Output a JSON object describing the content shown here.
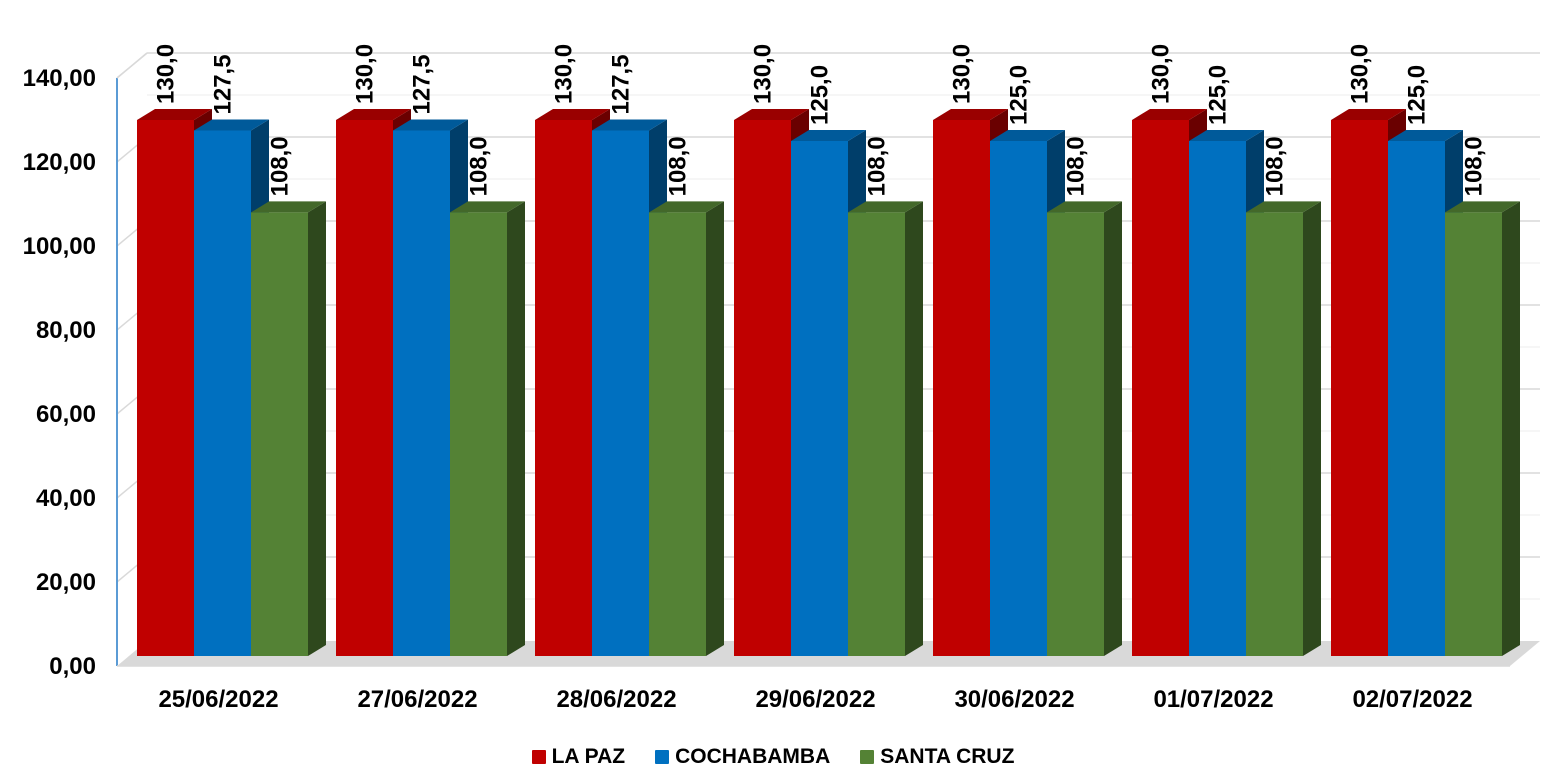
{
  "chart_data": {
    "type": "bar",
    "categories": [
      "25/06/2022",
      "27/06/2022",
      "28/06/2022",
      "29/06/2022",
      "30/06/2022",
      "01/07/2022",
      "02/07/2022"
    ],
    "series": [
      {
        "name": "LA PAZ",
        "color": "#c00000",
        "values": [
          130.0,
          130.0,
          130.0,
          130.0,
          130.0,
          130.0,
          130.0
        ],
        "labels": [
          "130,0",
          "130,0",
          "130,0",
          "130,0",
          "130,0",
          "130,0",
          "130,0"
        ]
      },
      {
        "name": "COCHABAMBA",
        "color": "#0070c0",
        "values": [
          127.5,
          127.5,
          127.5,
          125.0,
          125.0,
          125.0,
          125.0
        ],
        "labels": [
          "127,5",
          "127,5",
          "127,5",
          "125,0",
          "125,0",
          "125,0",
          "125,0"
        ]
      },
      {
        "name": "SANTA CRUZ",
        "color": "#548235",
        "values": [
          108.0,
          108.0,
          108.0,
          108.0,
          108.0,
          108.0,
          108.0
        ],
        "labels": [
          "108,0",
          "108,0",
          "108,0",
          "108,0",
          "108,0",
          "108,0",
          "108,0"
        ]
      }
    ],
    "y_ticks": [
      "0,00",
      "20,00",
      "40,00",
      "60,00",
      "80,00",
      "100,00",
      "120,00",
      "140,00"
    ],
    "ylim": [
      0,
      140
    ],
    "title": "",
    "xlabel": "",
    "ylabel": "",
    "grid": true,
    "legend_position": "bottom",
    "style": "3d-column"
  }
}
